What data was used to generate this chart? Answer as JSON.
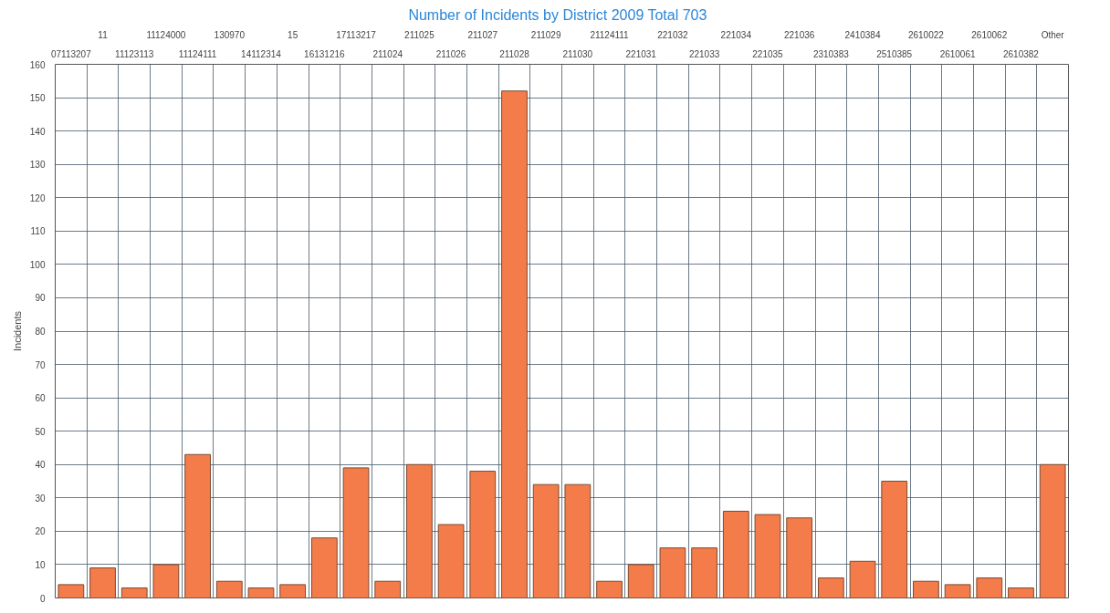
{
  "chart_data": {
    "type": "bar",
    "title": "Number of Incidents by District 2009   Total 703",
    "ylabel": "Incidents",
    "categories": [
      "07113207",
      "11",
      "11123113",
      "11124000",
      "11124111",
      "130970",
      "14112314",
      "15",
      "16131216",
      "17113217",
      "211024",
      "211025",
      "211026",
      "211027",
      "211028",
      "211029",
      "211030",
      "21124111",
      "221031",
      "221032",
      "221033",
      "221034",
      "221035",
      "221036",
      "2310383",
      "2410384",
      "2510385",
      "2610022",
      "2610061",
      "2610062",
      "2610382",
      "Other"
    ],
    "values": [
      4,
      9,
      3,
      10,
      43,
      5,
      3,
      4,
      18,
      39,
      5,
      40,
      22,
      38,
      152,
      34,
      34,
      5,
      10,
      15,
      15,
      26,
      25,
      24,
      6,
      11,
      35,
      5,
      4,
      6,
      3,
      40
    ],
    "color": "#f47c4a",
    "ylim": [
      0,
      160
    ],
    "yticks": [
      0,
      10,
      20,
      30,
      40,
      50,
      60,
      70,
      80,
      90,
      100,
      110,
      120,
      130,
      140,
      150,
      160
    ],
    "grid": true
  }
}
